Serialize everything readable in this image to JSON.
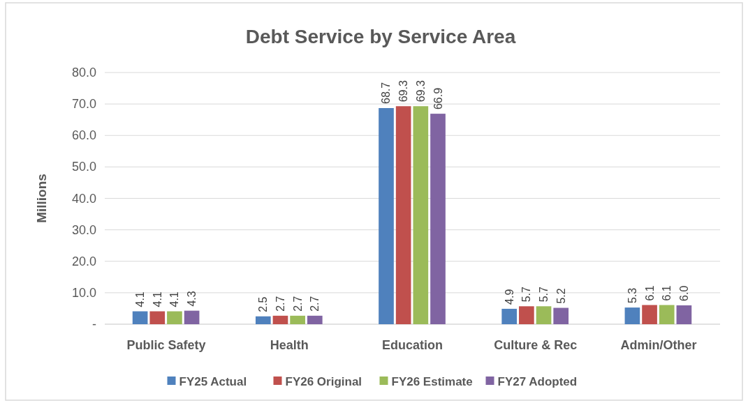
{
  "chart_data": {
    "type": "bar",
    "title": "Debt Service by Service Area",
    "ylabel": "Millions",
    "categories": [
      "Public Safety",
      "Health",
      "Education",
      "Culture & Rec",
      "Admin/Other"
    ],
    "series": [
      {
        "name": "FY25 Actual",
        "color": "#4f81bd",
        "values": [
          4.1,
          2.5,
          68.7,
          4.9,
          5.3
        ],
        "value_labels": [
          "4.1",
          "2.5",
          "68.7",
          "4.9",
          "5.3"
        ]
      },
      {
        "name": "FY26 Original",
        "color": "#c0504d",
        "values": [
          4.1,
          2.7,
          69.3,
          5.7,
          6.1
        ],
        "value_labels": [
          "4.1",
          "2.7",
          "69.3",
          "5.7",
          "6.1"
        ]
      },
      {
        "name": "FY26 Estimate",
        "color": "#9bbb59",
        "values": [
          4.1,
          2.7,
          69.3,
          5.7,
          6.1
        ],
        "value_labels": [
          "4.1",
          "2.7",
          "69.3",
          "5.7",
          "6.1"
        ]
      },
      {
        "name": "FY27 Adopted",
        "color": "#8064a2",
        "values": [
          4.3,
          2.7,
          66.9,
          5.2,
          6.0
        ],
        "value_labels": [
          "4.3",
          "2.7",
          "66.9",
          "5.2",
          "6.0"
        ]
      }
    ],
    "ylim": [
      0,
      80
    ],
    "yticks": [
      {
        "value": 0,
        "label": "-"
      },
      {
        "value": 10,
        "label": "10.0"
      },
      {
        "value": 20,
        "label": "20.0"
      },
      {
        "value": 30,
        "label": "30.0"
      },
      {
        "value": 40,
        "label": "40.0"
      },
      {
        "value": 50,
        "label": "50.0"
      },
      {
        "value": 60,
        "label": "60.0"
      },
      {
        "value": 70,
        "label": "70.0"
      },
      {
        "value": 80,
        "label": "80.0"
      }
    ],
    "grid": "y",
    "legend": "bottom"
  }
}
